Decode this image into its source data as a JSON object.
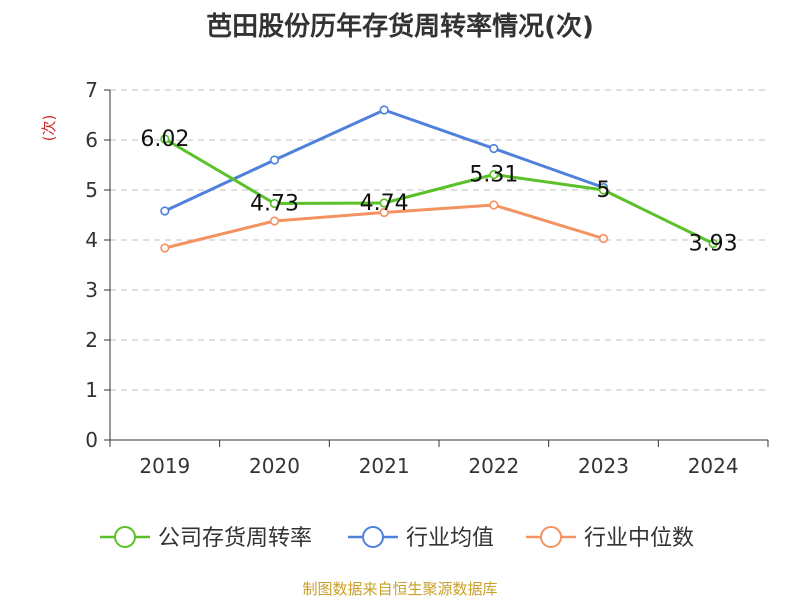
{
  "chart_data": {
    "type": "line",
    "title": "芭田股份历年存货周转率情况(次)",
    "ylabel": "(次)",
    "xlabel": "",
    "categories": [
      "2019",
      "2020",
      "2021",
      "2022",
      "2023",
      "2024"
    ],
    "ylim": [
      0,
      7
    ],
    "yticks": [
      0,
      1,
      2,
      3,
      4,
      5,
      6,
      7
    ],
    "grid": true,
    "legend_position": "bottom",
    "series": [
      {
        "name": "公司存货周转率",
        "color": "#5bc12a",
        "values": [
          6.02,
          4.73,
          4.74,
          5.31,
          5.0,
          3.93
        ],
        "labels": [
          "6.02",
          "4.73",
          "4.74",
          "5.31",
          "5",
          "3.93"
        ]
      },
      {
        "name": "行业均值",
        "color": "#4f81dc",
        "values": [
          4.58,
          5.6,
          6.6,
          5.83,
          5.05,
          null
        ],
        "labels": []
      },
      {
        "name": "行业中位数",
        "color": "#f49261",
        "values": [
          3.84,
          4.38,
          4.55,
          4.7,
          4.03,
          null
        ],
        "labels": []
      }
    ]
  },
  "source": "制图数据来自恒生聚源数据库"
}
